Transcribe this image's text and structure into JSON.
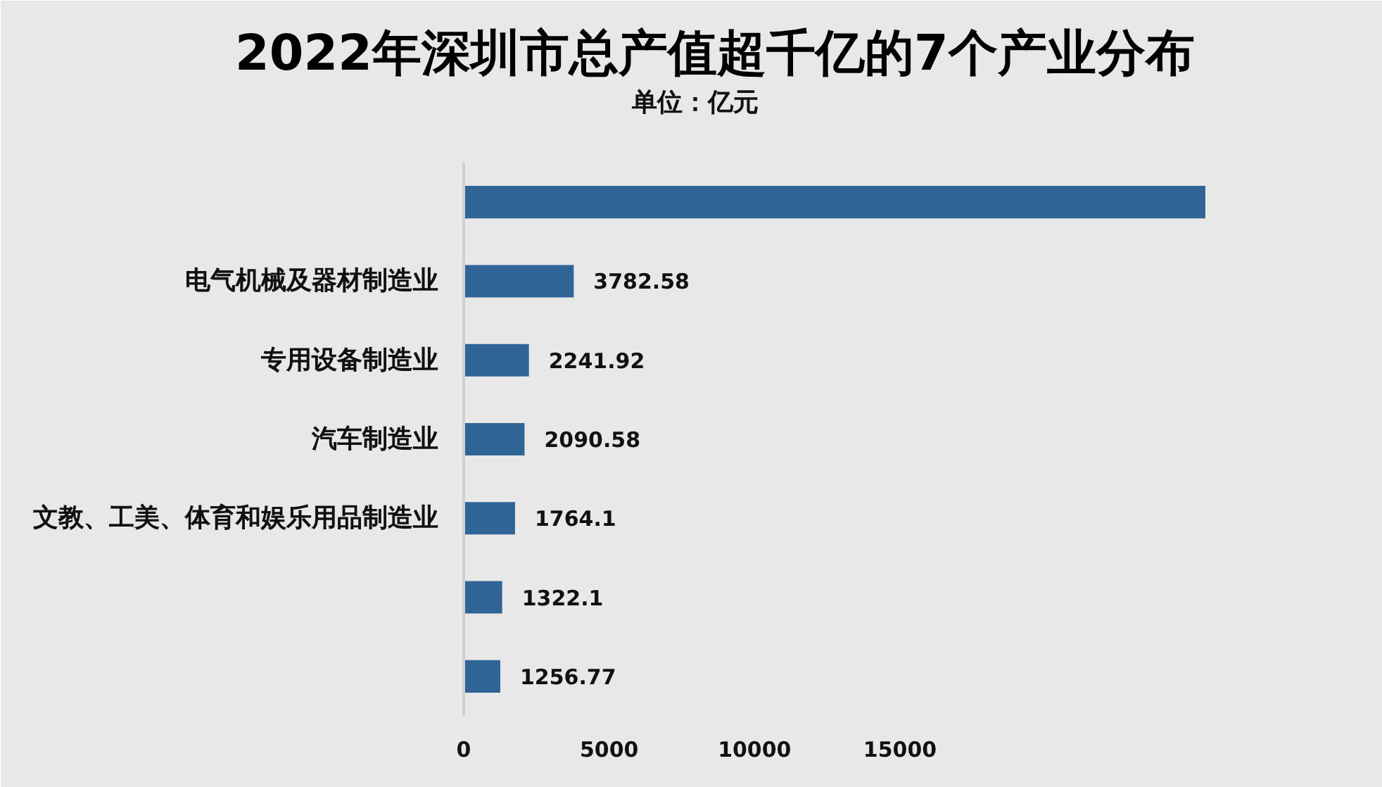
{
  "chart_data": {
    "type": "bar",
    "orientation": "horizontal",
    "title": "2022年深圳市总产值超千亿的7个产业分布",
    "subtitle": "单位：亿元",
    "categories": [
      null,
      "电气机械及器材制造业",
      "专用设备制造业",
      "汽车制造业",
      "文教、工美、体育和娱乐用品制造业",
      null,
      null
    ],
    "values": [
      25500,
      3782.58,
      2241.92,
      2090.58,
      1764.1,
      1322.1,
      1256.77
    ],
    "value_labels": [
      null,
      "3782.58",
      "2241.92",
      "2090.58",
      "1764.1",
      "1322.1",
      "1256.77"
    ],
    "color": "#2f6497",
    "xlim": [
      0,
      30000
    ],
    "xticks": [
      0,
      5000,
      10000,
      15000
    ]
  }
}
